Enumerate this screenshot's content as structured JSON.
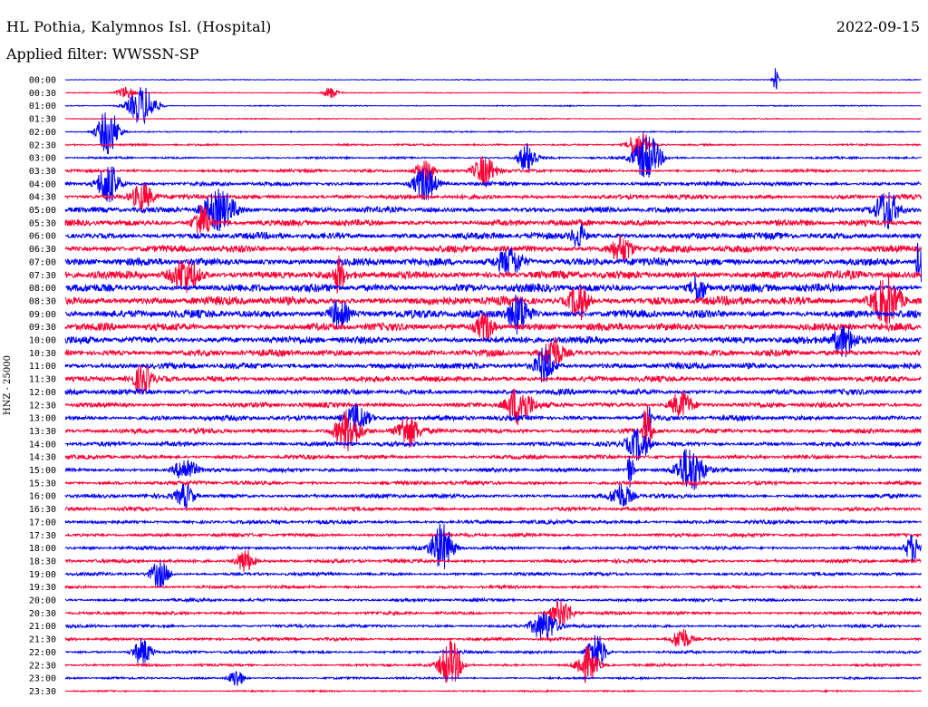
{
  "header": {
    "station": "HL Pothia, Kalymnos Isl. (Hospital)",
    "date": "2022-09-15",
    "filter": "Applied filter: WWSSN-SP"
  },
  "chart_data": {
    "type": "line",
    "title": "HL Pothia, Kalymnos Isl. (Hospital)",
    "subtitle": "Applied filter: WWSSN-SP",
    "ylabel": "HNZ - 25000",
    "xlabel": "",
    "y_tick_labels": [
      "00:00",
      "00:30",
      "01:00",
      "01:30",
      "02:00",
      "02:30",
      "03:00",
      "03:30",
      "04:00",
      "04:30",
      "05:00",
      "05:30",
      "06:00",
      "06:30",
      "07:00",
      "07:30",
      "08:00",
      "08:30",
      "09:00",
      "09:30",
      "10:00",
      "10:30",
      "11:00",
      "11:30",
      "12:00",
      "12:30",
      "13:00",
      "13:30",
      "14:00",
      "14:30",
      "15:00",
      "15:30",
      "16:00",
      "16:30",
      "17:00",
      "17:30",
      "18:00",
      "18:30",
      "19:00",
      "19:30",
      "20:00",
      "20:30",
      "21:00",
      "21:30",
      "22:00",
      "22:30",
      "23:00",
      "23:30"
    ],
    "series_colors": [
      "#0000ff",
      "#ff0033"
    ],
    "trace_noise_level": [
      0.08,
      0.08,
      0.1,
      0.1,
      0.12,
      0.18,
      0.2,
      0.3,
      0.4,
      0.45,
      0.55,
      0.6,
      0.65,
      0.7,
      0.75,
      0.8,
      0.8,
      0.85,
      0.8,
      0.75,
      0.7,
      0.65,
      0.6,
      0.55,
      0.55,
      0.5,
      0.5,
      0.5,
      0.45,
      0.4,
      0.4,
      0.4,
      0.4,
      0.38,
      0.38,
      0.35,
      0.35,
      0.35,
      0.33,
      0.3,
      0.3,
      0.3,
      0.3,
      0.3,
      0.28,
      0.25,
      0.2,
      0.15
    ],
    "events": [
      {
        "trace": 0,
        "x": 0.83,
        "amp": 6,
        "w": 0.003
      },
      {
        "trace": 1,
        "x": 0.07,
        "amp": 3,
        "w": 0.01
      },
      {
        "trace": 1,
        "x": 0.31,
        "amp": 3,
        "w": 0.008
      },
      {
        "trace": 2,
        "x": 0.09,
        "amp": 10,
        "w": 0.015
      },
      {
        "trace": 4,
        "x": 0.05,
        "amp": 12,
        "w": 0.012
      },
      {
        "trace": 5,
        "x": 0.67,
        "amp": 8,
        "w": 0.01
      },
      {
        "trace": 6,
        "x": 0.54,
        "amp": 8,
        "w": 0.01
      },
      {
        "trace": 6,
        "x": 0.68,
        "amp": 12,
        "w": 0.015
      },
      {
        "trace": 7,
        "x": 0.49,
        "amp": 8,
        "w": 0.012
      },
      {
        "trace": 7,
        "x": 0.42,
        "amp": 6,
        "w": 0.01
      },
      {
        "trace": 8,
        "x": 0.05,
        "amp": 11,
        "w": 0.012
      },
      {
        "trace": 8,
        "x": 0.42,
        "amp": 9,
        "w": 0.012
      },
      {
        "trace": 9,
        "x": 0.09,
        "amp": 7,
        "w": 0.012
      },
      {
        "trace": 10,
        "x": 0.18,
        "amp": 10,
        "w": 0.018
      },
      {
        "trace": 10,
        "x": 0.96,
        "amp": 10,
        "w": 0.012
      },
      {
        "trace": 11,
        "x": 0.16,
        "amp": 9,
        "w": 0.01
      },
      {
        "trace": 12,
        "x": 0.6,
        "amp": 6,
        "w": 0.008
      },
      {
        "trace": 13,
        "x": 0.65,
        "amp": 7,
        "w": 0.012
      },
      {
        "trace": 14,
        "x": 0.52,
        "amp": 7,
        "w": 0.015
      },
      {
        "trace": 14,
        "x": 0.998,
        "amp": 12,
        "w": 0.004
      },
      {
        "trace": 15,
        "x": 0.14,
        "amp": 8,
        "w": 0.015
      },
      {
        "trace": 15,
        "x": 0.32,
        "amp": 9,
        "w": 0.005
      },
      {
        "trace": 16,
        "x": 0.74,
        "amp": 7,
        "w": 0.008
      },
      {
        "trace": 17,
        "x": 0.6,
        "amp": 9,
        "w": 0.01
      },
      {
        "trace": 17,
        "x": 0.96,
        "amp": 12,
        "w": 0.015
      },
      {
        "trace": 18,
        "x": 0.53,
        "amp": 10,
        "w": 0.012
      },
      {
        "trace": 18,
        "x": 0.32,
        "amp": 7,
        "w": 0.01
      },
      {
        "trace": 19,
        "x": 0.49,
        "amp": 7,
        "w": 0.01
      },
      {
        "trace": 20,
        "x": 0.91,
        "amp": 8,
        "w": 0.012
      },
      {
        "trace": 21,
        "x": 0.57,
        "amp": 8,
        "w": 0.01
      },
      {
        "trace": 22,
        "x": 0.56,
        "amp": 9,
        "w": 0.01
      },
      {
        "trace": 23,
        "x": 0.09,
        "amp": 7,
        "w": 0.01
      },
      {
        "trace": 25,
        "x": 0.53,
        "amp": 10,
        "w": 0.014
      },
      {
        "trace": 25,
        "x": 0.72,
        "amp": 7,
        "w": 0.012
      },
      {
        "trace": 26,
        "x": 0.34,
        "amp": 7,
        "w": 0.014
      },
      {
        "trace": 26,
        "x": 0.68,
        "amp": 9,
        "w": 0.004
      },
      {
        "trace": 27,
        "x": 0.33,
        "amp": 10,
        "w": 0.014
      },
      {
        "trace": 27,
        "x": 0.4,
        "amp": 8,
        "w": 0.012
      },
      {
        "trace": 27,
        "x": 0.68,
        "amp": 18,
        "w": 0.004
      },
      {
        "trace": 28,
        "x": 0.67,
        "amp": 8,
        "w": 0.012
      },
      {
        "trace": 30,
        "x": 0.66,
        "amp": 9,
        "w": 0.004
      },
      {
        "trace": 30,
        "x": 0.73,
        "amp": 12,
        "w": 0.015
      },
      {
        "trace": 30,
        "x": 0.14,
        "amp": 6,
        "w": 0.012
      },
      {
        "trace": 32,
        "x": 0.14,
        "amp": 6,
        "w": 0.01
      },
      {
        "trace": 32,
        "x": 0.65,
        "amp": 6,
        "w": 0.012
      },
      {
        "trace": 36,
        "x": 0.44,
        "amp": 12,
        "w": 0.012
      },
      {
        "trace": 36,
        "x": 0.99,
        "amp": 7,
        "w": 0.008
      },
      {
        "trace": 37,
        "x": 0.21,
        "amp": 6,
        "w": 0.01
      },
      {
        "trace": 38,
        "x": 0.11,
        "amp": 7,
        "w": 0.01
      },
      {
        "trace": 41,
        "x": 0.58,
        "amp": 7,
        "w": 0.012
      },
      {
        "trace": 42,
        "x": 0.56,
        "amp": 8,
        "w": 0.014
      },
      {
        "trace": 43,
        "x": 0.72,
        "amp": 6,
        "w": 0.01
      },
      {
        "trace": 44,
        "x": 0.09,
        "amp": 7,
        "w": 0.01
      },
      {
        "trace": 44,
        "x": 0.62,
        "amp": 11,
        "w": 0.01
      },
      {
        "trace": 45,
        "x": 0.45,
        "amp": 12,
        "w": 0.012
      },
      {
        "trace": 45,
        "x": 0.61,
        "amp": 9,
        "w": 0.012
      },
      {
        "trace": 46,
        "x": 0.2,
        "amp": 5,
        "w": 0.008
      }
    ],
    "grid": false,
    "legend": "none"
  }
}
